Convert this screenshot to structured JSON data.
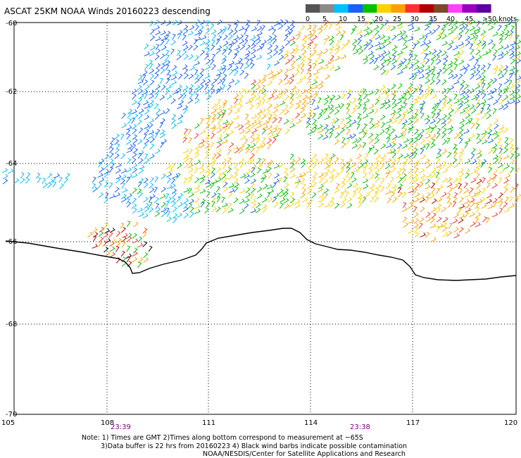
{
  "header": {
    "title": "ASCAT 25KM NOAA Winds 20160223 descending"
  },
  "legend": {
    "labels": [
      "0",
      "5",
      "10",
      "15",
      "20",
      "25",
      "30",
      "35",
      "40",
      "45",
      ">50 knots"
    ],
    "colors": [
      "#555555",
      "#8a8a8a",
      "#00bfff",
      "#1a5fff",
      "#00c000",
      "#ffd000",
      "#ffa000",
      "#ff3030",
      "#b00000",
      "#7a4a2a",
      "#ff40ff",
      "#9a00c0",
      "#5a00a0"
    ]
  },
  "map": {
    "lat_labels": [
      "-60",
      "-62",
      "-64",
      "-66",
      "-68",
      "-70"
    ],
    "lon_labels": [
      "105",
      "108",
      "111",
      "114",
      "117",
      "120"
    ],
    "times": [
      "23:39",
      "23:38"
    ],
    "time_color": "#800080",
    "grid": true
  },
  "notes": {
    "line1": "Note: 1) Times are GMT 2)Times along bottom correspond to measurement at ~65S",
    "line2": "3)Data buffer is 22 hrs from 20160223 4) Black wind barbs indicate possible contamination",
    "line3": "NOAA/NESDIS/Center for Satellite Applications and Research"
  },
  "wind_colors": {
    "speed_0_5": "#555555",
    "speed_5_10": "#00bfff",
    "speed_10_15": "#1a5fff",
    "speed_15_20": "#00c000",
    "speed_20_25": "#ffd000",
    "speed_25_30": "#ffa000",
    "speed_30_35": "#ff3030",
    "speed_35_40": "#b00000",
    "contaminated": "#000000"
  }
}
